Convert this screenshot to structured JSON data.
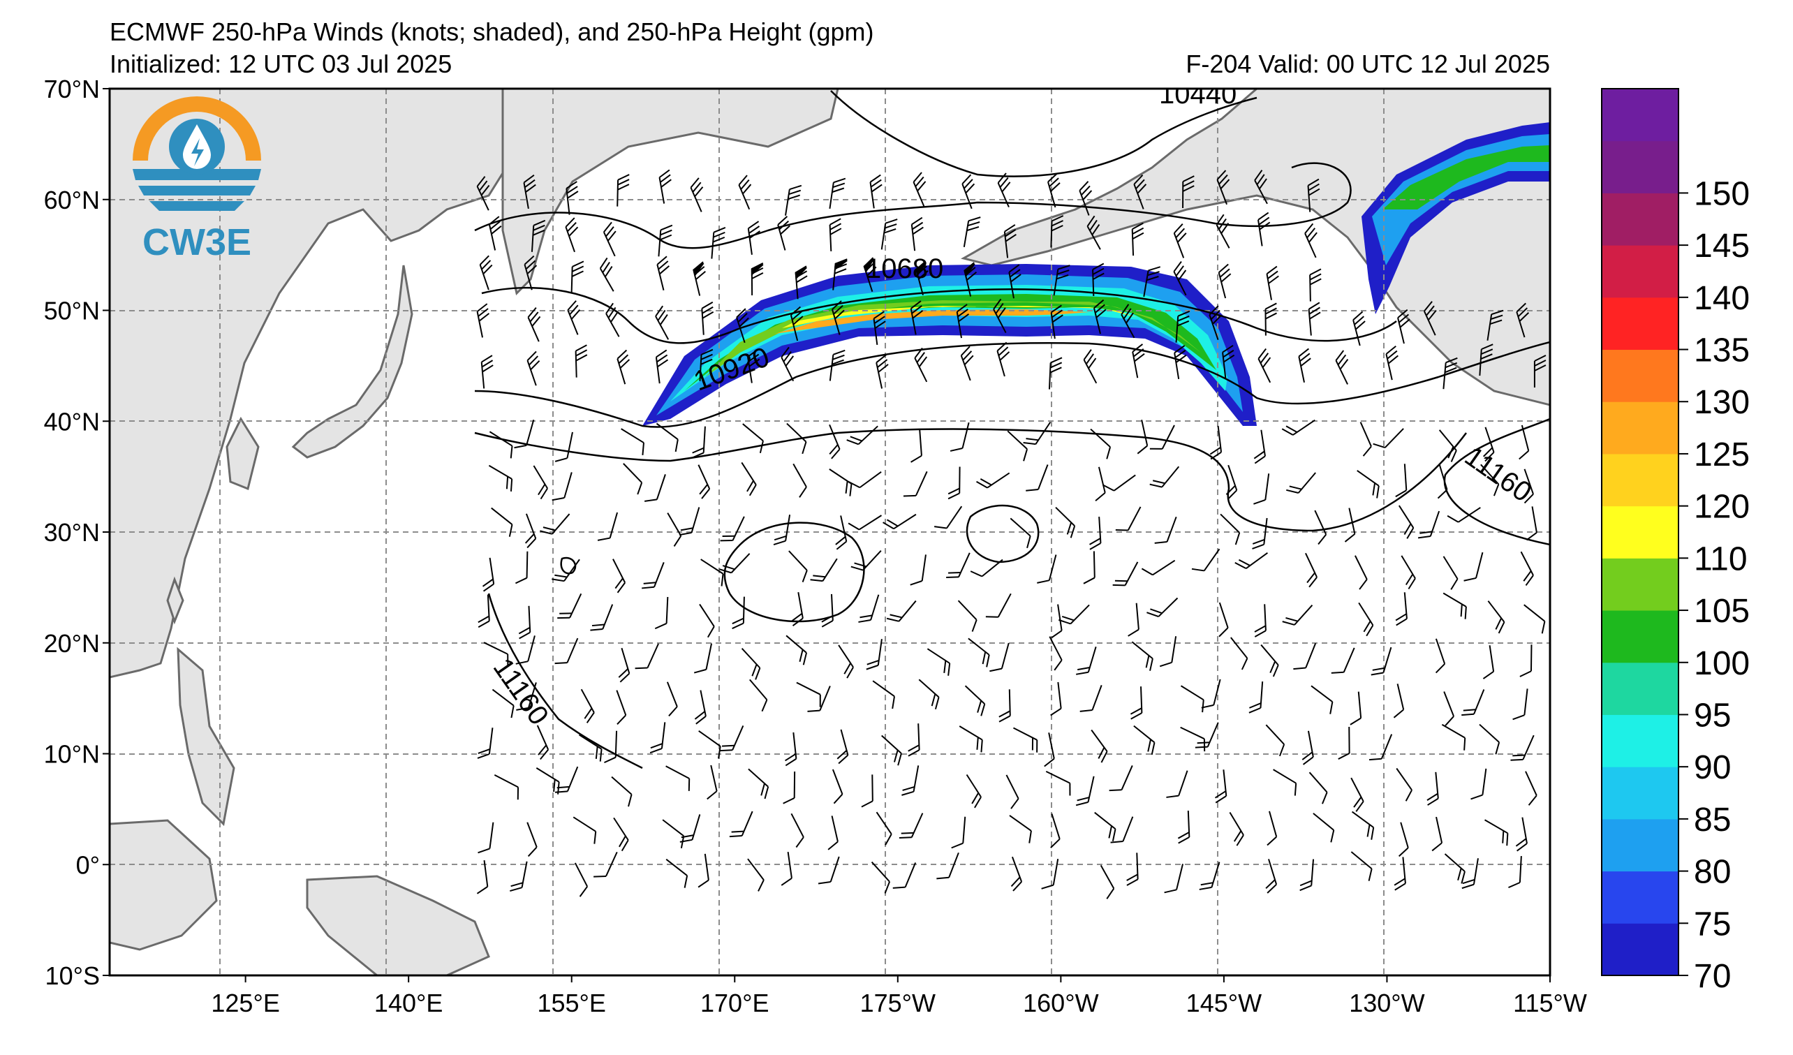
{
  "header": {
    "title": "ECMWF 250-hPa Winds (knots; shaded), and 250-hPa Height (gpm)",
    "initialized": "Initialized: 12 UTC 03 Jul 2025",
    "valid": "F-204  Valid: 00 UTC 12 Jul 2025"
  },
  "logo": {
    "text": "CW3E",
    "colors": {
      "orange": "#f59a23",
      "blue": "#2f8fbf"
    }
  },
  "axes": {
    "lat_labels": [
      "70°N",
      "60°N",
      "50°N",
      "40°N",
      "30°N",
      "20°N",
      "10°N",
      "0°",
      "10°S"
    ],
    "lat_values": [
      70,
      60,
      50,
      40,
      30,
      20,
      10,
      0,
      -10
    ],
    "lon_labels": [
      "125°E",
      "140°E",
      "155°E",
      "170°E",
      "175°W",
      "160°W",
      "145°W",
      "130°W",
      "115°W"
    ],
    "lon_values": [
      125,
      140,
      155,
      170,
      185,
      200,
      215,
      230,
      245
    ],
    "lon_range": [
      112.5,
      245
    ],
    "lat_range": [
      -10,
      70
    ]
  },
  "colorbar": {
    "ticks": [
      "70",
      "75",
      "80",
      "85",
      "90",
      "95",
      "100",
      "105",
      "110",
      "120",
      "125",
      "130",
      "135",
      "140",
      "145",
      "150"
    ],
    "colors": [
      "#1f1fc8",
      "#2846ee",
      "#1ea0f0",
      "#1ec8f0",
      "#1ef0e6",
      "#1ed7a0",
      "#1eb91e",
      "#73cd1e",
      "#ffff1e",
      "#ffd21e",
      "#ffaa1e",
      "#ff781e",
      "#ff2323",
      "#d21e46",
      "#a01e64",
      "#781e8c",
      "#6e1ea0"
    ]
  },
  "contours": {
    "labels": [
      "10440",
      "10680",
      "10920",
      "11160",
      "11160"
    ]
  },
  "chart_data": {
    "type": "map",
    "field_shaded": "250-hPa wind speed (knots)",
    "field_contour": "250-hPa height (gpm)",
    "jet_max_band": "110-125 kt",
    "jet_location": "40-55°N, 165°E-135°W",
    "contour_values": [
      10440,
      10680,
      10920,
      11160
    ],
    "highs": [
      {
        "lat": 25,
        "lon": 178
      },
      {
        "lat": 29,
        "lon": 197
      }
    ]
  }
}
